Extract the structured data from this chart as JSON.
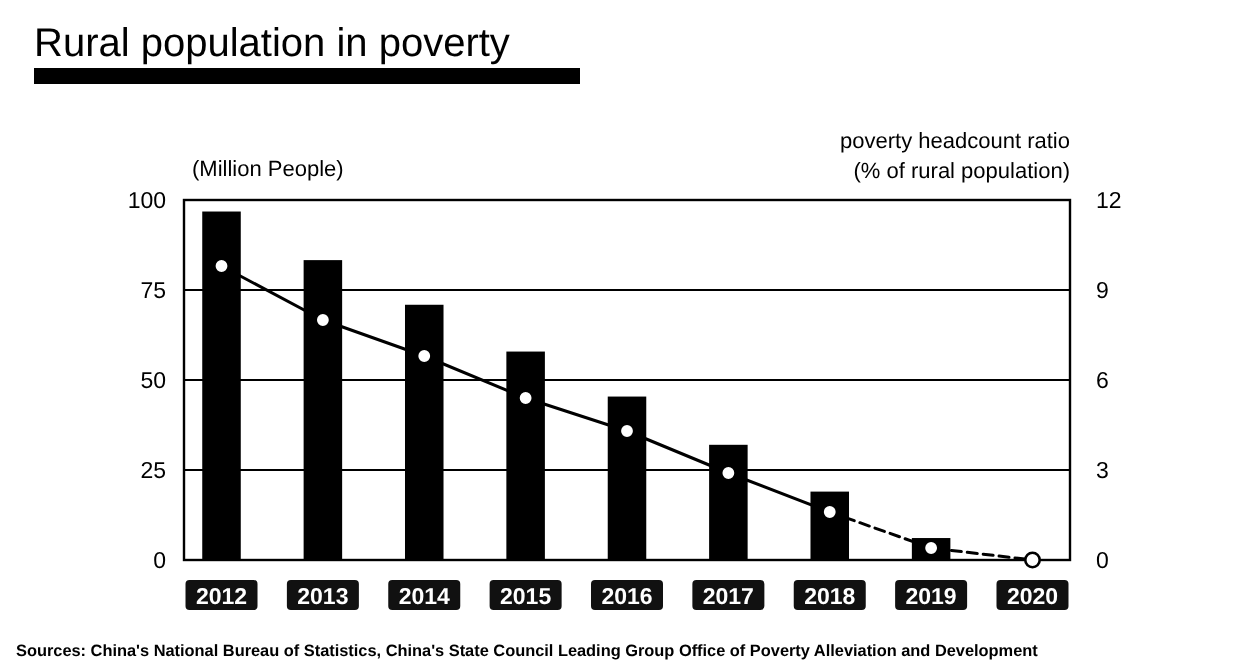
{
  "chart_data": {
    "type": "bar",
    "title": "Rural population in poverty",
    "ylabel": "(Million People)",
    "y2label": "poverty headcount ratio\n(% of rural population)",
    "categories": [
      "2012",
      "2013",
      "2014",
      "2015",
      "2016",
      "2017",
      "2018",
      "2019",
      "2020"
    ],
    "series": [
      {
        "color": "#000000",
        "values": [
          96.8,
          83.3,
          70.9,
          57.9,
          45.4,
          32,
          19,
          6.1,
          null
        ]
      },
      {
        "type": "line",
        "axis": "y2",
        "color": "#000000",
        "line_style": "solid",
        "marker": "circle",
        "values": [
          9.8,
          8.0,
          6.8,
          5.4,
          4.3,
          2.9,
          1.6,
          null,
          null
        ]
      },
      {
        "type": "line",
        "axis": "y2",
        "color": "#000000",
        "line_style": "dashed",
        "marker": "circle",
        "values": [
          null,
          null,
          null,
          null,
          null,
          null,
          1.6,
          0.4,
          0
        ]
      }
    ],
    "ylim": [
      0,
      100
    ],
    "yticks": [
      0,
      25,
      50,
      75,
      100
    ],
    "y2lim": [
      0,
      12
    ],
    "y2ticks": [
      0,
      3,
      6,
      9,
      12
    ],
    "grid": "y",
    "annotations": [
      "Sources: China's National Bureau of Statistics, China's State Council Leading Group Office of Poverty Alleviation and Development"
    ]
  }
}
